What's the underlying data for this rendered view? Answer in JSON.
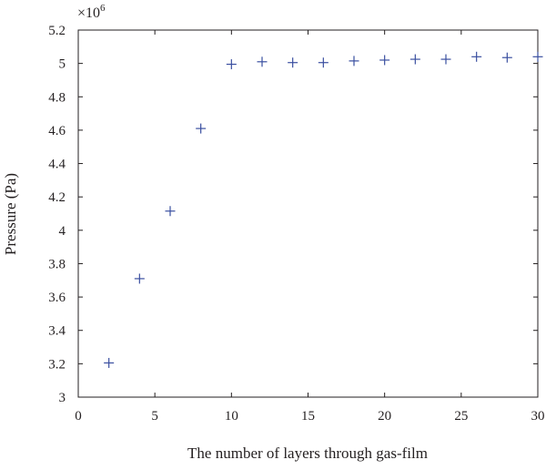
{
  "chart_data": {
    "type": "scatter",
    "title": "",
    "xlabel": "The number of layers through gas-film",
    "ylabel": "Pressure (Pa)",
    "y_multiplier_base": "×10",
    "y_multiplier_exponent": "6",
    "xlim": [
      0,
      30
    ],
    "ylim": [
      3,
      5.2
    ],
    "x_ticks": [
      0,
      5,
      10,
      15,
      20,
      25,
      30
    ],
    "x_tick_labels": [
      "0",
      "5",
      "10",
      "15",
      "20",
      "25",
      "30"
    ],
    "y_ticks": [
      3,
      3.2,
      3.4,
      3.6,
      3.8,
      4,
      4.2,
      4.4,
      4.6,
      4.8,
      5,
      5.2
    ],
    "y_tick_labels": [
      "3",
      "3.2",
      "3.4",
      "3.6",
      "3.8",
      "4",
      "4.2",
      "4.4",
      "4.6",
      "4.8",
      "5",
      "5.2"
    ],
    "grid": false,
    "marker": "+",
    "marker_color": "#3a4fa0",
    "axis_color": "#231f20",
    "series": [
      {
        "x": [
          2,
          4,
          6,
          8,
          10,
          12,
          14,
          16,
          18,
          20,
          22,
          24,
          26,
          28,
          30
        ],
        "y": [
          3.205,
          3.71,
          4.115,
          4.61,
          4.995,
          5.01,
          5.005,
          5.005,
          5.015,
          5.02,
          5.025,
          5.025,
          5.04,
          5.035,
          5.04
        ]
      }
    ]
  }
}
